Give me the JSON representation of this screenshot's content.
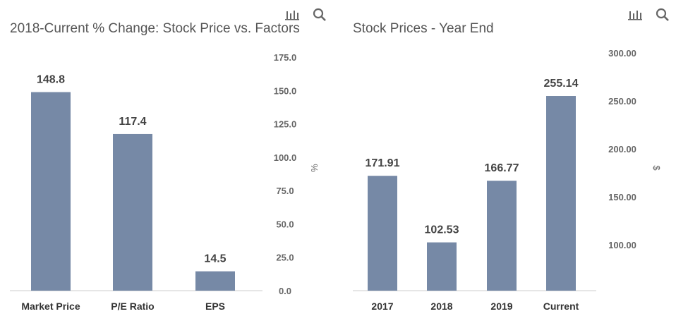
{
  "chart_data": [
    {
      "type": "bar",
      "title": "2018-Current % Change: Stock Price vs. Factors",
      "categories": [
        "Market Price",
        "P/E Ratio",
        "EPS"
      ],
      "values": [
        148.8,
        117.4,
        14.5
      ],
      "data_labels": [
        "148.8",
        "117.4",
        "14.5"
      ],
      "ylabel": "%",
      "ylim": [
        0,
        175
      ],
      "yticks": [
        "0.0",
        "25.0",
        "50.0",
        "75.0",
        "100.0",
        "125.0",
        "150.0",
        "175.0"
      ],
      "ytick_values": [
        0,
        25,
        50,
        75,
        100,
        125,
        150,
        175
      ],
      "color": "#7689a6",
      "grid": false,
      "axis_side": "right"
    },
    {
      "type": "bar",
      "title": "Stock Prices - Year End",
      "categories": [
        "2017",
        "2018",
        "2019",
        "Current"
      ],
      "values": [
        171.91,
        102.53,
        166.77,
        255.14
      ],
      "data_labels": [
        "171.91",
        "102.53",
        "166.77",
        "255.14"
      ],
      "ylabel": "$",
      "ylim": [
        50,
        300
      ],
      "yticks": [
        "100.00",
        "150.00",
        "200.00",
        "250.00",
        "300.00"
      ],
      "ytick_values": [
        100,
        150,
        200,
        250,
        300
      ],
      "color": "#7689a6",
      "grid": false,
      "axis_side": "right"
    }
  ],
  "toolbar": {
    "chart_icon": "bar-chart-icon",
    "search_icon": "search-icon"
  }
}
